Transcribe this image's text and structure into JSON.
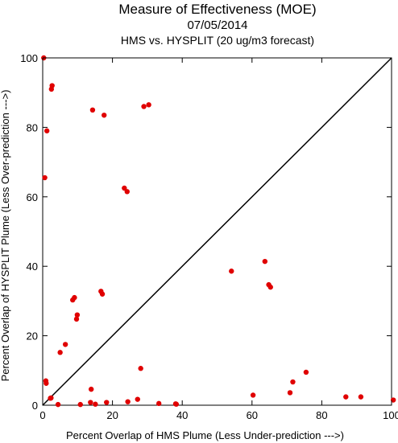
{
  "title": "Measure of Effectiveness (MOE)",
  "date": "07/05/2014",
  "subtitle": "HMS vs. HYSPLIT  (20 ug/m3 forecast)",
  "chart_data": {
    "type": "scatter",
    "title": "Measure of Effectiveness (MOE)",
    "subtitle": "HMS vs. HYSPLIT  (20 ug/m3 forecast)",
    "xlabel": "Percent Overlap of HMS Plume (Less Under-prediction --->)",
    "ylabel": "Percent Overlap of HYSPLIT Plume (Less Over-prediction --->)",
    "xlim": [
      0,
      100
    ],
    "ylim": [
      0,
      100
    ],
    "xticks": [
      0,
      20,
      40,
      60,
      80,
      100
    ],
    "yticks": [
      0,
      20,
      40,
      60,
      80,
      100
    ],
    "grid": false,
    "reference_line": {
      "from": [
        0,
        0
      ],
      "to": [
        100,
        100
      ],
      "color": "#000000"
    },
    "point_color": "#e00000",
    "points": [
      [
        0.3,
        100
      ],
      [
        2.7,
        92
      ],
      [
        2.5,
        91
      ],
      [
        0.6,
        65.5
      ],
      [
        1.2,
        79
      ],
      [
        14.3,
        85
      ],
      [
        17.6,
        83.5
      ],
      [
        29,
        86
      ],
      [
        30.4,
        86.5
      ],
      [
        23.4,
        62.5
      ],
      [
        24.2,
        61.5
      ],
      [
        9.1,
        31
      ],
      [
        8.6,
        30.3
      ],
      [
        16.7,
        32.8
      ],
      [
        17.1,
        32
      ],
      [
        9.9,
        26
      ],
      [
        9.7,
        24.8
      ],
      [
        6.5,
        17.5
      ],
      [
        5,
        15.2
      ],
      [
        0.9,
        7
      ],
      [
        1,
        6.3
      ],
      [
        2.4,
        2.1
      ],
      [
        2.2,
        2
      ],
      [
        4.4,
        0.2
      ],
      [
        10.8,
        0.2
      ],
      [
        13.9,
        4.6
      ],
      [
        13.7,
        0.8
      ],
      [
        15.1,
        0.3
      ],
      [
        18.3,
        0.8
      ],
      [
        24.4,
        1
      ],
      [
        27.2,
        1.7
      ],
      [
        28.1,
        10.6
      ],
      [
        33.3,
        0.5
      ],
      [
        38.1,
        0.4
      ],
      [
        38.3,
        0.3
      ],
      [
        54.1,
        38.6
      ],
      [
        63.7,
        41.4
      ],
      [
        64.8,
        34.7
      ],
      [
        65.3,
        34
      ],
      [
        60.3,
        2.9
      ],
      [
        70.9,
        3.6
      ],
      [
        71.7,
        6.7
      ],
      [
        75.5,
        9.5
      ],
      [
        86.9,
        2.4
      ],
      [
        91.2,
        2.4
      ],
      [
        100.5,
        1.5
      ]
    ]
  }
}
